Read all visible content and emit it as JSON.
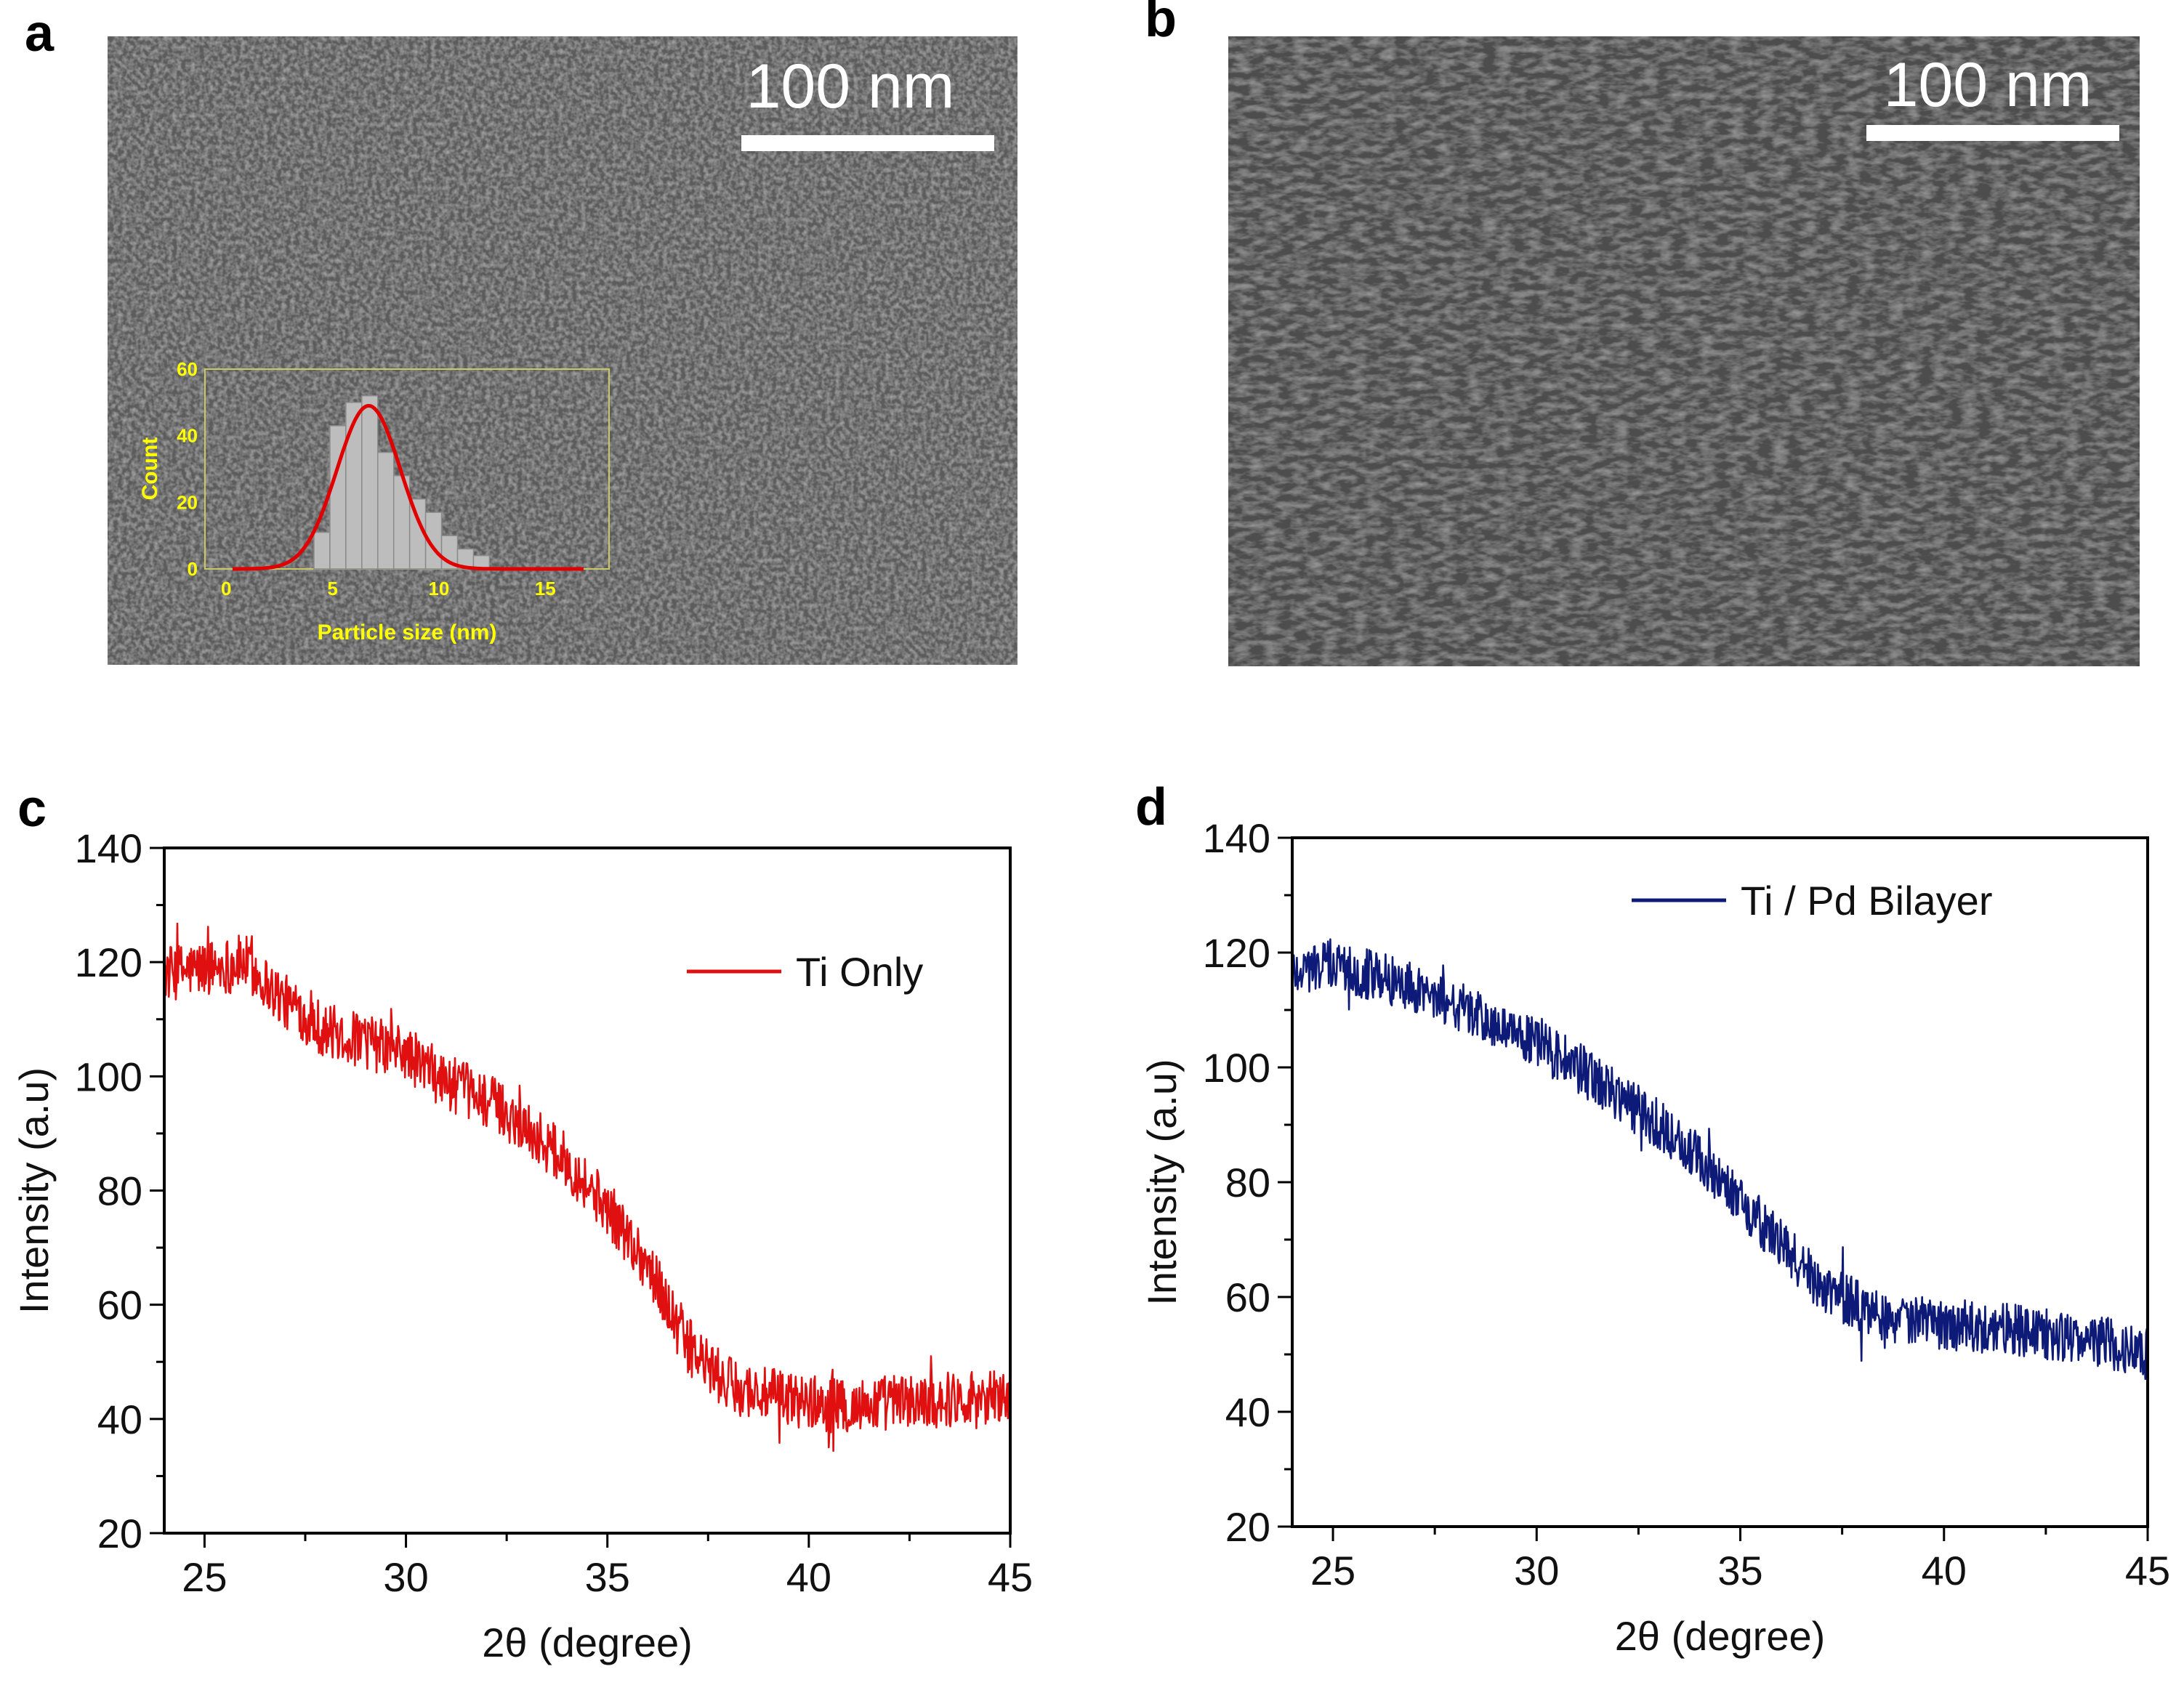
{
  "panels": {
    "a": {
      "label": "a",
      "scale_bar": "100 nm"
    },
    "b": {
      "label": "b",
      "scale_bar": "100 nm"
    },
    "c": {
      "label": "c"
    },
    "d": {
      "label": "d"
    }
  },
  "colors": {
    "ti_only": "#e01010",
    "ti_pd": "#0d1a78",
    "gauss": "#e00000",
    "inset_text": "#ffff00"
  },
  "chart_data": [
    {
      "id": "inset_a",
      "type": "bar",
      "title": "",
      "xlabel": "Particle size (nm)",
      "ylabel": "Count",
      "xlim": [
        -1,
        18
      ],
      "ylim": [
        0,
        60
      ],
      "xticks": [
        0,
        5,
        10,
        15
      ],
      "yticks": [
        0,
        20,
        40,
        60
      ],
      "bin_width": 0.75,
      "bins": [
        {
          "x": 4.5,
          "count": 11
        },
        {
          "x": 5.25,
          "count": 43
        },
        {
          "x": 6.0,
          "count": 50
        },
        {
          "x": 6.75,
          "count": 52
        },
        {
          "x": 7.5,
          "count": 35
        },
        {
          "x": 8.25,
          "count": 28
        },
        {
          "x": 9.0,
          "count": 21
        },
        {
          "x": 9.75,
          "count": 17
        },
        {
          "x": 10.5,
          "count": 10
        },
        {
          "x": 11.25,
          "count": 6
        },
        {
          "x": 12.0,
          "count": 4
        }
      ],
      "fit": {
        "type": "gaussian",
        "amplitude": 49,
        "center": 6.7,
        "sigma": 1.5,
        "x_range": [
          0.3,
          16.8
        ]
      }
    },
    {
      "id": "c",
      "type": "line",
      "xlabel": "2θ (degree)",
      "ylabel": "Intensity (a.u)",
      "xlim": [
        24,
        45
      ],
      "ylim": [
        20,
        140
      ],
      "xticks": [
        25,
        30,
        35,
        40,
        45
      ],
      "yticks": [
        20,
        40,
        60,
        80,
        100,
        120,
        140
      ],
      "legend": "Ti Only",
      "legend_position": "top-right",
      "series": [
        {
          "name": "Ti Only",
          "x": [
            24,
            25,
            26,
            27,
            28,
            29,
            30,
            31,
            32,
            33,
            34,
            35,
            36,
            36.5,
            37,
            37.5,
            38,
            39,
            40,
            41,
            42,
            43,
            44,
            45
          ],
          "y": [
            118,
            119,
            120,
            113,
            108,
            106,
            104,
            99,
            96,
            91,
            85,
            77,
            67,
            60,
            53,
            49,
            46,
            44,
            43,
            42,
            43,
            43,
            44,
            44
          ],
          "noise_amplitude": 3.5
        }
      ]
    },
    {
      "id": "d",
      "type": "line",
      "xlabel": "2θ (degree)",
      "ylabel": "Intensity (a.u)",
      "xlim": [
        24,
        45
      ],
      "ylim": [
        20,
        140
      ],
      "xticks": [
        25,
        30,
        35,
        40,
        45
      ],
      "yticks": [
        20,
        40,
        60,
        80,
        100,
        120,
        140
      ],
      "legend": "Ti / Pd Bilayer",
      "legend_position": "top-right",
      "series": [
        {
          "name": "Ti / Pd Bilayer",
          "x": [
            24,
            25,
            26,
            27,
            28,
            29,
            30,
            31,
            32,
            33,
            34,
            35,
            36,
            37,
            38,
            39,
            40,
            41,
            42,
            43,
            44,
            45
          ],
          "y": [
            117,
            118,
            116,
            114,
            111,
            107,
            104,
            100,
            95,
            90,
            84,
            77,
            69,
            62,
            58,
            56,
            55,
            55,
            54,
            53,
            52,
            50
          ],
          "noise_amplitude": 3.2
        }
      ]
    }
  ]
}
